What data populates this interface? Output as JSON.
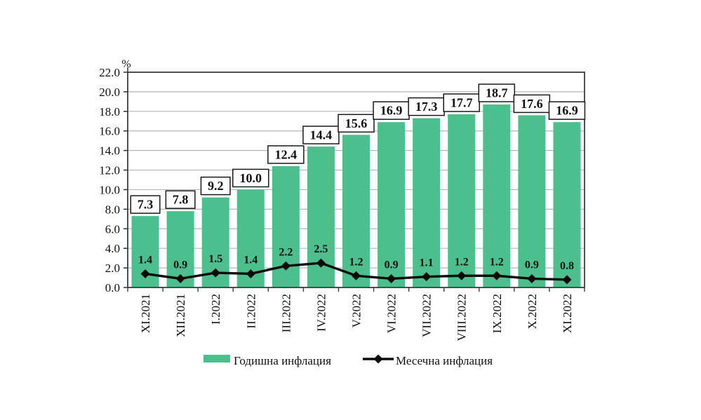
{
  "chart_data": {
    "type": "bar",
    "categories": [
      "XI.2021",
      "XII.2021",
      "I.2022",
      "II.2022",
      "III.2022",
      "IV.2022",
      "V.2022",
      "VI.2022",
      "VII.2022",
      "VIII.2022",
      "IX.2022",
      "X.2022",
      "XI.2022"
    ],
    "series": [
      {
        "name": "Годишна инфлация",
        "kind": "bar",
        "marker": "none",
        "values": [
          7.3,
          7.8,
          9.2,
          10.0,
          12.4,
          14.4,
          15.6,
          16.9,
          17.3,
          17.7,
          18.7,
          17.6,
          16.9
        ]
      },
      {
        "name": "Месечна инфлация",
        "kind": "line",
        "marker": "diamond",
        "values": [
          1.4,
          0.9,
          1.5,
          1.4,
          2.2,
          2.5,
          1.2,
          0.9,
          1.1,
          1.2,
          1.2,
          0.9,
          0.8
        ]
      }
    ],
    "title": "",
    "xlabel": "",
    "ylabel": "%",
    "ylim": [
      0,
      22
    ],
    "ytick_step": 2,
    "ytick_decimals": 1,
    "grid": true,
    "legend_position": "bottom",
    "bar_value_labels_boxed": true,
    "point_value_labels": true
  },
  "legend": {
    "annual_label": "Годишна инфлация",
    "monthly_label": "Месечна инфлация"
  },
  "colors": {
    "bar_fill": "#4cbf8d",
    "line_stroke": "#0b0b0b",
    "grid_line": "#b5b5b5",
    "frame": "#3d3d3d",
    "label_box_bg": "#ffffff",
    "label_box_border": "#1a1a1a",
    "text": "#111111",
    "background": "#ffffff"
  }
}
